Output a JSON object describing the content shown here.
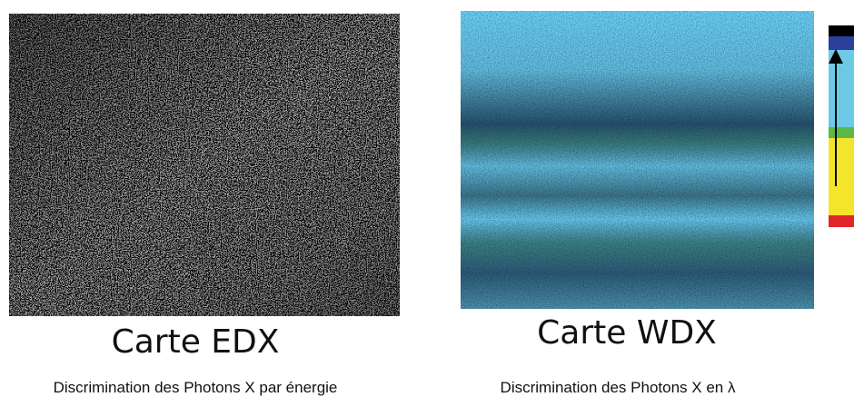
{
  "panels": [
    {
      "title": "Carte EDX",
      "caption": "Discrimination des Photons X par énergie"
    },
    {
      "title": "Carte WDX",
      "caption": "Discrimination des Photons X en λ"
    }
  ]
}
